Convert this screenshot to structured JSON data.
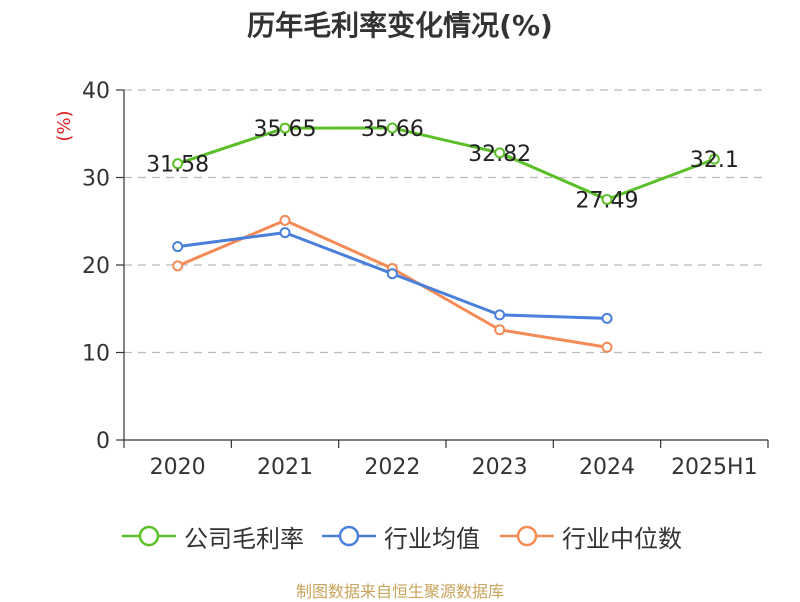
{
  "chart_data": {
    "type": "line",
    "title": "历年毛利率变化情况(%)",
    "ylabel": "(%)",
    "xlabel": "",
    "categories": [
      "2020",
      "2021",
      "2022",
      "2023",
      "2024",
      "2025H1"
    ],
    "ylim": [
      0,
      40
    ],
    "yticks": [
      0,
      10,
      20,
      30,
      40
    ],
    "grid": true,
    "legend_position": "bottom",
    "series": [
      {
        "name": "公司毛利率",
        "color": "#5cbf2a",
        "values": [
          31.58,
          35.65,
          35.66,
          32.82,
          27.49,
          32.1
        ],
        "labels": [
          "31.58",
          "35.65",
          "35.66",
          "32.82",
          "27.49",
          "32.1"
        ]
      },
      {
        "name": "行业均值",
        "color": "#4a7fdb",
        "values": [
          22.1,
          23.7,
          19.0,
          14.3,
          13.9,
          null
        ]
      },
      {
        "name": "行业中位数",
        "color": "#f48a55",
        "values": [
          19.9,
          25.1,
          19.6,
          12.6,
          10.6,
          null
        ]
      }
    ]
  },
  "source_note": "制图数据来自恒生聚源数据库"
}
